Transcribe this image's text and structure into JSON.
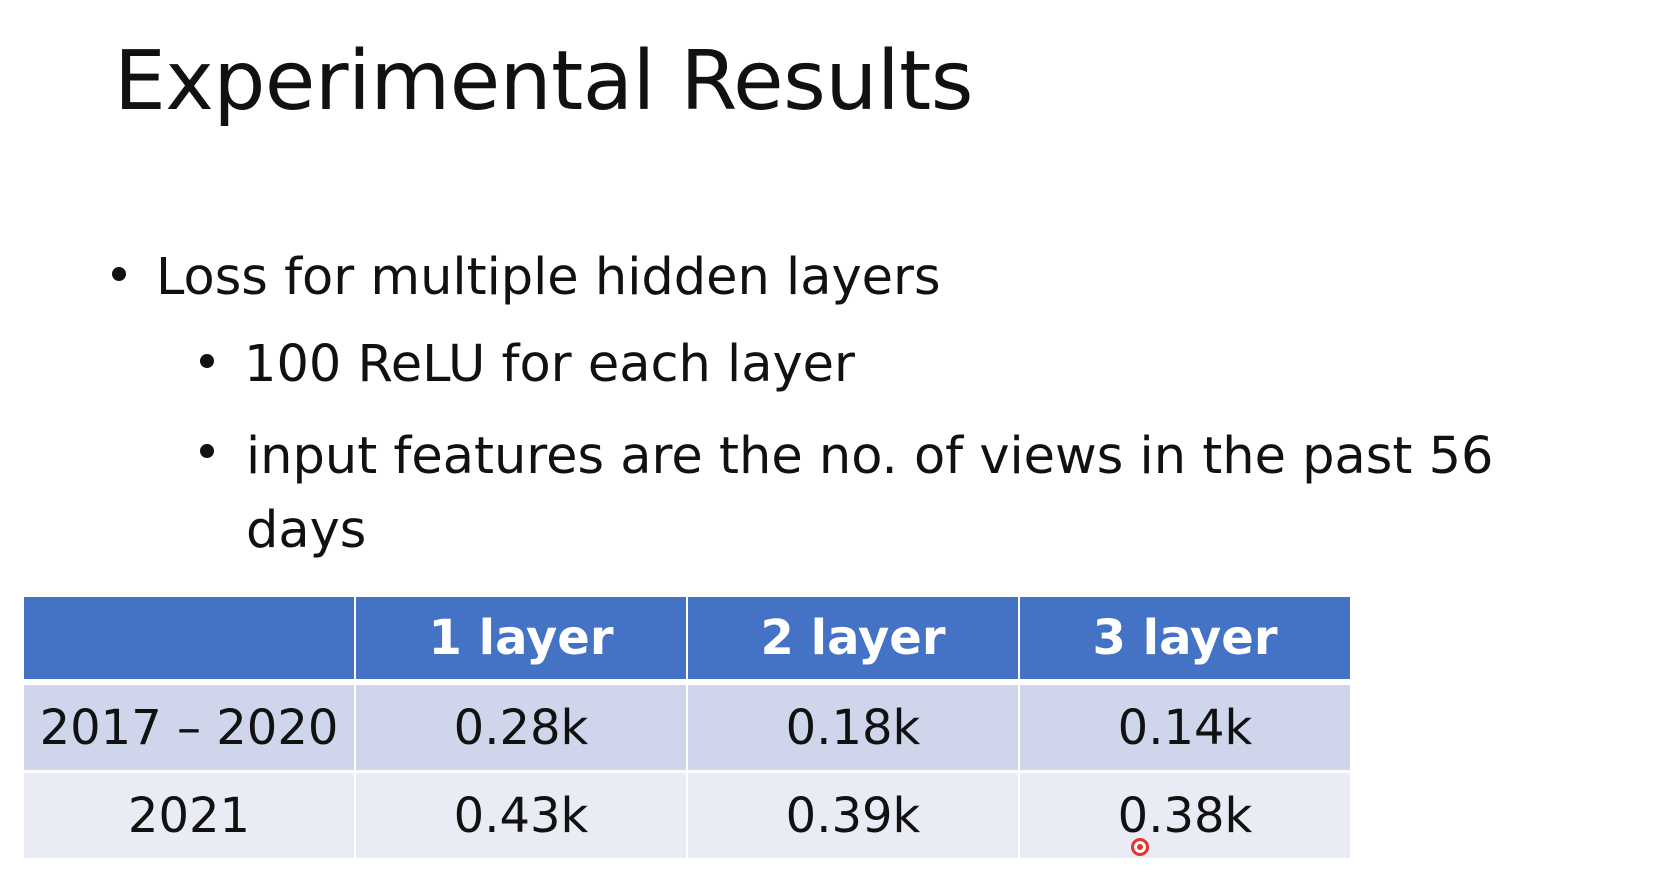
{
  "slide": {
    "title": "Experimental Results",
    "bullet_1": "Loss for multiple hidden layers",
    "sub_bullet_1": "100 ReLU for each layer",
    "sub_bullet_2": "input features are the no. of views in the past 56 days"
  },
  "table": {
    "headers": [
      "",
      "1 layer",
      "2 layer",
      "3 layer"
    ],
    "rows": [
      [
        "2017 – 2020",
        "0.28k",
        "0.18k",
        "0.14k"
      ],
      [
        "2021",
        "0.43k",
        "0.39k",
        "0.38k"
      ]
    ]
  },
  "colors": {
    "header_fill": "#4472c4",
    "row_odd_fill": "#cfd5ea",
    "row_even_fill": "#e9ebf5",
    "pointer": "#e8322e"
  },
  "icons": {
    "pointer": "laser-pointer-icon"
  }
}
